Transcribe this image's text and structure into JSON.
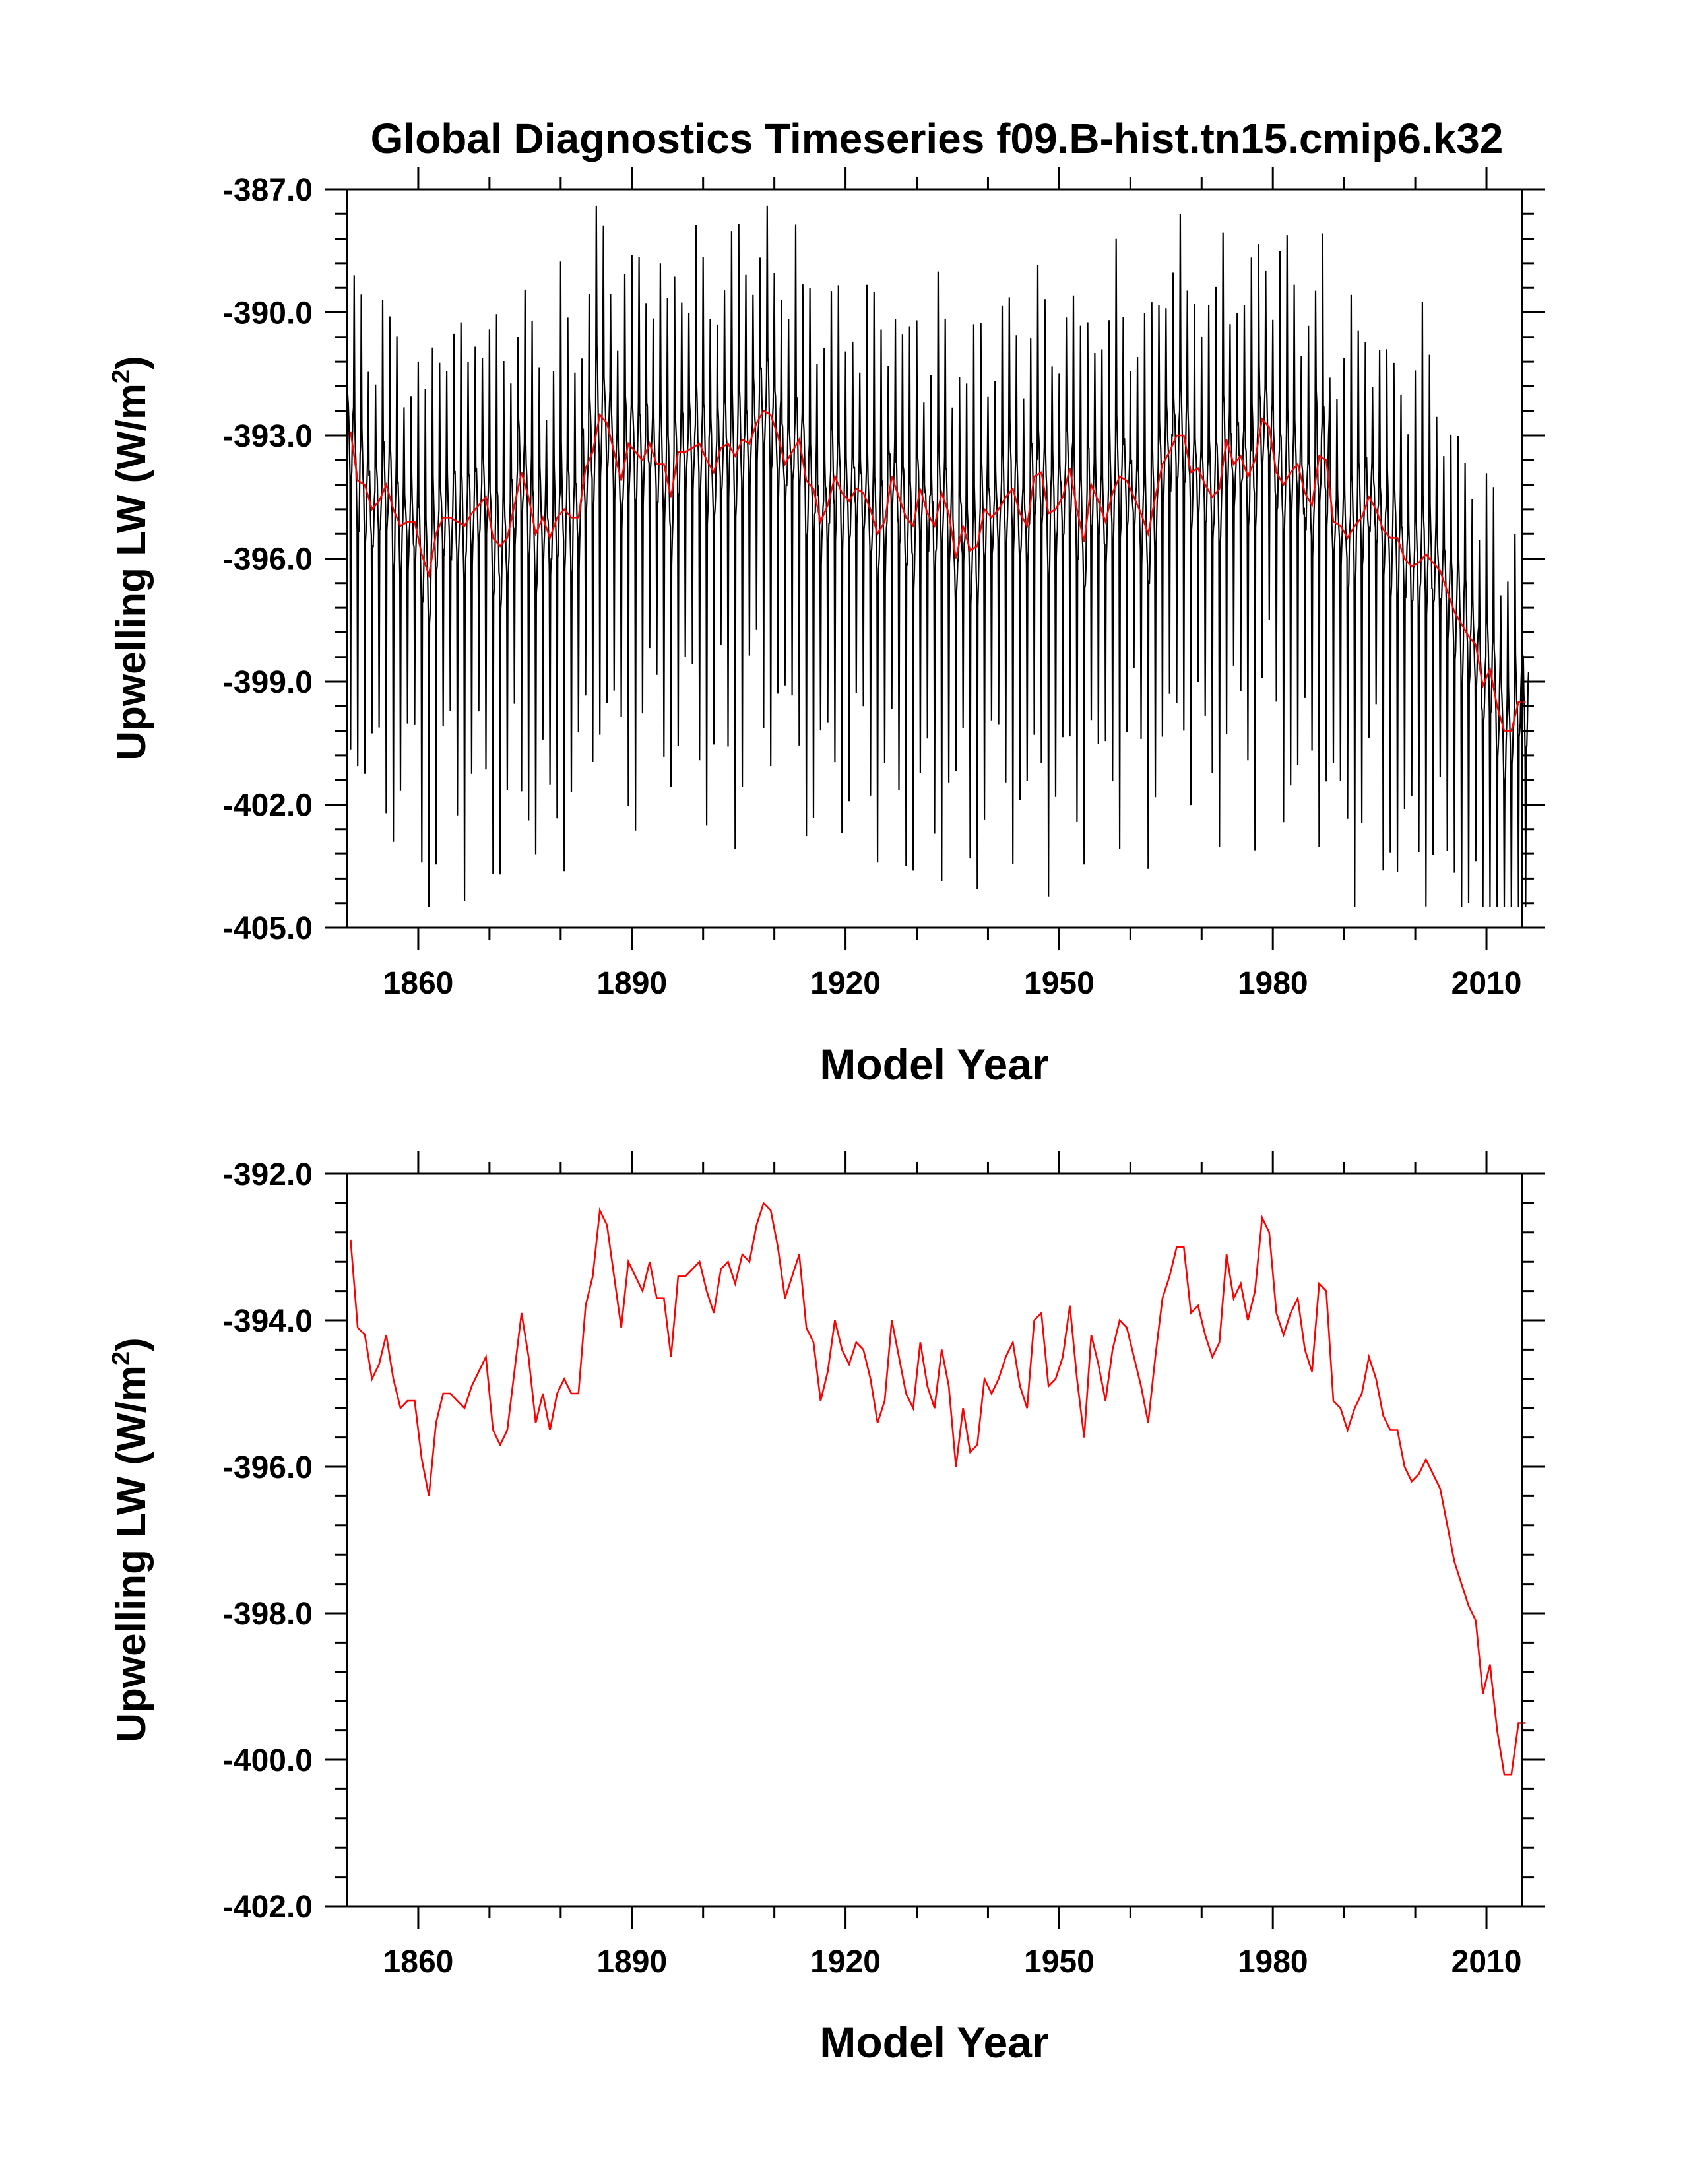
{
  "figure": {
    "title": "Global Diagnostics Timeseries f09.B-hist.tn15.cmip6.k32"
  },
  "colors": {
    "monthly": "#000000",
    "annual": "#ff0000",
    "axes": "#000000"
  },
  "chart_data": [
    {
      "type": "line",
      "panel": "top",
      "title": "Global Diagnostics Timeseries f09.B-hist.tn15.cmip6.k32",
      "xlabel": "Model Year",
      "ylabel_main": "Upwelling LW (W/m",
      "ylabel_sup": "2",
      "ylabel_close": ")",
      "xlim": [
        1850,
        2015
      ],
      "ylim": [
        -405.0,
        -387.0
      ],
      "xticks": [
        1860,
        1890,
        1920,
        1950,
        1980,
        2010
      ],
      "xtick_labels": [
        "1860",
        "1890",
        "1920",
        "1950",
        "1980",
        "2010"
      ],
      "yticks": [
        -405.0,
        -402.0,
        -399.0,
        -396.0,
        -393.0,
        -390.0,
        -387.0
      ],
      "ytick_labels": [
        "-405.0",
        "-402.0",
        "-399.0",
        "-396.0",
        "-393.0",
        "-390.0",
        "-387.0"
      ],
      "series": [
        {
          "name": "monthly",
          "color": "#000000",
          "seasonal_amplitude_max": 4.2,
          "seasonal_amplitude_min": 2.6,
          "peak_range": [
            -388.2,
            -404.3
          ]
        },
        {
          "name": "annual mean",
          "color": "#ff0000",
          "ref": "annual_means"
        }
      ]
    },
    {
      "type": "line",
      "panel": "bottom",
      "xlabel": "Model Year",
      "ylabel_main": "Upwelling LW (W/m",
      "ylabel_sup": "2",
      "ylabel_close": ")",
      "xlim": [
        1850,
        2015
      ],
      "ylim": [
        -402.0,
        -392.0
      ],
      "xticks": [
        1860,
        1890,
        1920,
        1950,
        1980,
        2010
      ],
      "xtick_labels": [
        "1860",
        "1890",
        "1920",
        "1950",
        "1980",
        "2010"
      ],
      "yticks": [
        -402.0,
        -400.0,
        -398.0,
        -396.0,
        -394.0,
        -392.0
      ],
      "ytick_labels": [
        "-402.0",
        "-400.0",
        "-398.0",
        "-396.0",
        "-394.0",
        "-392.0"
      ],
      "series": [
        {
          "name": "annual mean",
          "color": "#ff0000",
          "ref": "annual_means"
        }
      ]
    }
  ],
  "annual_means": {
    "start_year": 1850,
    "values": [
      -392.9,
      -394.1,
      -394.2,
      -394.8,
      -394.6,
      -394.2,
      -394.8,
      -395.2,
      -395.1,
      -395.1,
      -395.9,
      -396.4,
      -395.4,
      -395.0,
      -395.0,
      -395.1,
      -395.2,
      -394.9,
      -394.7,
      -394.5,
      -395.5,
      -395.7,
      -395.5,
      -394.7,
      -393.9,
      -394.5,
      -395.4,
      -395.0,
      -395.5,
      -395.0,
      -394.8,
      -395.0,
      -395.0,
      -393.8,
      -393.4,
      -392.5,
      -392.7,
      -393.4,
      -394.1,
      -393.2,
      -393.4,
      -393.6,
      -393.2,
      -393.7,
      -393.7,
      -394.5,
      -393.4,
      -393.4,
      -393.3,
      -393.2,
      -393.6,
      -393.9,
      -393.3,
      -393.2,
      -393.5,
      -393.1,
      -393.2,
      -392.7,
      -392.4,
      -392.5,
      -393.0,
      -393.7,
      -393.4,
      -393.1,
      -394.1,
      -394.3,
      -395.1,
      -394.7,
      -394.0,
      -394.4,
      -394.6,
      -394.3,
      -394.4,
      -394.8,
      -395.4,
      -395.1,
      -394.0,
      -394.5,
      -395.0,
      -395.2,
      -394.3,
      -394.9,
      -395.2,
      -394.4,
      -394.9,
      -396.0,
      -395.2,
      -395.8,
      -395.7,
      -394.8,
      -395.0,
      -394.8,
      -394.5,
      -394.3,
      -394.9,
      -395.2,
      -394.0,
      -393.9,
      -394.9,
      -394.8,
      -394.5,
      -393.8,
      -394.8,
      -395.6,
      -394.2,
      -394.6,
      -395.1,
      -394.4,
      -394.0,
      -394.1,
      -394.5,
      -394.9,
      -395.4,
      -394.5,
      -393.7,
      -393.4,
      -393.0,
      -393.0,
      -393.9,
      -393.8,
      -394.2,
      -394.5,
      -394.3,
      -393.1,
      -393.7,
      -393.5,
      -394.0,
      -393.6,
      -392.6,
      -392.8,
      -393.9,
      -394.2,
      -393.9,
      -393.7,
      -394.4,
      -394.7,
      -393.5,
      -393.6,
      -395.1,
      -395.2,
      -395.5,
      -395.2,
      -395.0,
      -394.5,
      -394.8,
      -395.3,
      -395.5,
      -395.5,
      -396.0,
      -396.2,
      -396.1,
      -395.9,
      -396.1,
      -396.3,
      -396.8,
      -397.3,
      -397.6,
      -397.9,
      -398.1,
      -399.1,
      -398.7,
      -399.6,
      -400.2,
      -400.2,
      -399.5,
      -399.5
    ]
  }
}
